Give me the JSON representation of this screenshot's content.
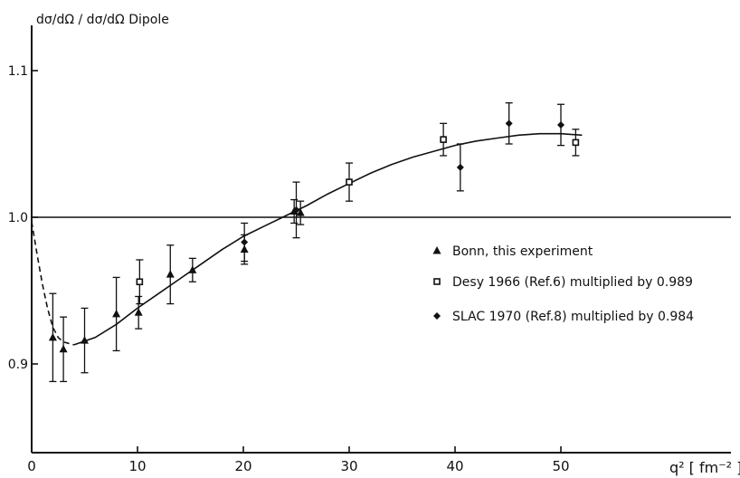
{
  "chart_data": {
    "type": "scatter",
    "title": "",
    "ylabel": "dσ/dΩ / dσ/dΩ Dipole",
    "xlabel": "q² [ fm⁻² ]",
    "xlim": [
      0,
      55
    ],
    "ylim": [
      0.84,
      1.14
    ],
    "x_ticks": [
      0,
      10,
      20,
      30,
      40,
      50
    ],
    "x_tick_labels": [
      "0",
      "10",
      "20",
      "30",
      "40",
      "50"
    ],
    "y_ticks": [
      0.9,
      1.0,
      1.1
    ],
    "y_tick_labels": [
      "0.9",
      "1.0",
      "1.1"
    ],
    "reference_line": 1.0,
    "grid": false,
    "legend_position": "center-right",
    "series": [
      {
        "name": "Bonn, this experiment",
        "marker": "triangle",
        "points": [
          {
            "x": 2.0,
            "y": 0.918,
            "err": 0.03
          },
          {
            "x": 3.0,
            "y": 0.91,
            "err": 0.022
          },
          {
            "x": 5.0,
            "y": 0.916,
            "err": 0.022
          },
          {
            "x": 8.0,
            "y": 0.934,
            "err": 0.025
          },
          {
            "x": 10.1,
            "y": 0.935,
            "err": 0.011
          },
          {
            "x": 13.1,
            "y": 0.961,
            "err": 0.02
          },
          {
            "x": 15.2,
            "y": 0.964,
            "err": 0.008
          },
          {
            "x": 20.1,
            "y": 0.978,
            "err": 0.01
          },
          {
            "x": 24.8,
            "y": 1.004,
            "err": 0.008
          },
          {
            "x": 25.4,
            "y": 1.003,
            "err": 0.008
          }
        ]
      },
      {
        "name": "Desy 1966 (Ref.6) multiplied by 0.989",
        "marker": "square",
        "points": [
          {
            "x": 10.2,
            "y": 0.956,
            "err": 0.015
          },
          {
            "x": 30.0,
            "y": 1.024,
            "err": 0.013
          },
          {
            "x": 38.9,
            "y": 1.053,
            "err": 0.011
          },
          {
            "x": 51.4,
            "y": 1.051,
            "err": 0.009
          }
        ]
      },
      {
        "name": "SLAC 1970 (Ref.8) multiplied by 0.984",
        "marker": "diamond",
        "points": [
          {
            "x": 20.1,
            "y": 0.983,
            "err": 0.013
          },
          {
            "x": 25.0,
            "y": 1.005,
            "err": 0.019
          },
          {
            "x": 40.5,
            "y": 1.034,
            "err": 0.016
          },
          {
            "x": 45.1,
            "y": 1.064,
            "err": 0.014
          },
          {
            "x": 50.0,
            "y": 1.063,
            "err": 0.014
          }
        ]
      }
    ],
    "fit_curve": {
      "solid": [
        [
          4.0,
          0.913
        ],
        [
          6,
          0.918
        ],
        [
          8,
          0.927
        ],
        [
          10,
          0.938
        ],
        [
          12,
          0.948
        ],
        [
          14,
          0.958
        ],
        [
          16,
          0.968
        ],
        [
          18,
          0.978
        ],
        [
          20,
          0.987
        ],
        [
          22,
          0.994
        ],
        [
          24,
          1.001
        ],
        [
          26,
          1.008
        ],
        [
          28,
          1.016
        ],
        [
          30,
          1.023
        ],
        [
          32,
          1.03
        ],
        [
          34,
          1.036
        ],
        [
          36,
          1.041
        ],
        [
          38,
          1.045
        ],
        [
          40,
          1.049
        ],
        [
          42,
          1.052
        ],
        [
          44,
          1.054
        ],
        [
          46,
          1.056
        ],
        [
          48,
          1.057
        ],
        [
          50,
          1.057
        ],
        [
          52,
          1.056
        ]
      ],
      "dashed": [
        [
          0,
          0.997
        ],
        [
          0.5,
          0.975
        ],
        [
          1.0,
          0.955
        ],
        [
          1.5,
          0.938
        ],
        [
          2.0,
          0.925
        ],
        [
          2.5,
          0.918
        ],
        [
          3.0,
          0.915
        ],
        [
          3.5,
          0.914
        ],
        [
          4.0,
          0.913
        ]
      ]
    }
  }
}
